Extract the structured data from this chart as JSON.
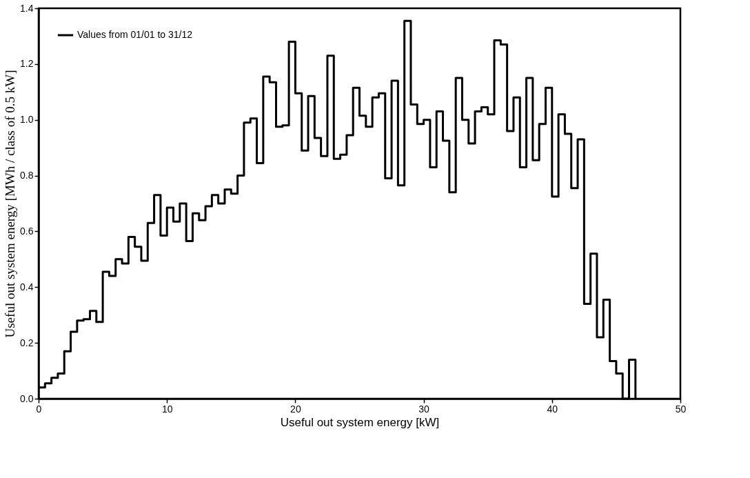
{
  "chart_data": {
    "type": "histogram",
    "xlabel": "Useful out system energy [kW]",
    "ylabel": "Useful out system energy [MWh / class of 0.5 kW]",
    "bins": [
      0,
      0.5,
      1,
      1.5,
      2,
      2.5,
      3,
      3.5,
      4,
      4.5,
      5,
      5.5,
      6,
      6.5,
      7,
      7.5,
      8,
      8.5,
      9,
      9.5,
      10,
      10.5,
      11,
      11.5,
      12,
      12.5,
      13,
      13.5,
      14,
      14.5,
      15,
      15.5,
      16,
      16.5,
      17,
      17.5,
      18,
      18.5,
      19,
      19.5,
      20,
      20.5,
      21,
      21.5,
      22,
      22.5,
      23,
      23.5,
      24,
      24.5,
      25,
      25.5,
      26,
      26.5,
      27,
      27.5,
      28,
      28.5,
      29,
      29.5,
      30,
      30.5,
      31,
      31.5,
      32,
      32.5,
      33,
      33.5,
      34,
      34.5,
      35,
      35.5,
      36,
      36.5,
      37,
      37.5,
      38,
      38.5,
      39,
      39.5,
      40,
      40.5,
      41,
      41.5,
      42,
      42.5,
      43,
      43.5,
      44,
      44.5,
      45,
      45.5,
      46,
      46.5
    ],
    "series": [
      {
        "name": "Values from 01/01 to 31/12",
        "color": "#000000",
        "values": [
          0.04,
          0.055,
          0.075,
          0.09,
          0.17,
          0.24,
          0.28,
          0.285,
          0.315,
          0.275,
          0.455,
          0.44,
          0.5,
          0.485,
          0.58,
          0.545,
          0.495,
          0.63,
          0.73,
          0.585,
          0.685,
          0.635,
          0.7,
          0.565,
          0.665,
          0.64,
          0.69,
          0.73,
          0.7,
          0.75,
          0.735,
          0.8,
          0.99,
          1.005,
          0.845,
          1.155,
          1.135,
          0.975,
          0.98,
          1.28,
          1.095,
          0.89,
          1.085,
          0.935,
          0.87,
          1.23,
          0.86,
          0.875,
          0.945,
          1.115,
          1.015,
          0.975,
          1.08,
          1.095,
          0.79,
          1.14,
          0.765,
          1.355,
          1.055,
          0.985,
          1.0,
          0.83,
          1.03,
          0.925,
          0.74,
          1.15,
          1.0,
          0.915,
          1.03,
          1.045,
          1.02,
          1.285,
          1.27,
          0.96,
          1.08,
          0.83,
          1.15,
          0.855,
          0.985,
          1.115,
          0.725,
          1.02,
          0.95,
          0.755,
          0.93,
          0.34,
          0.52,
          0.22,
          0.355,
          0.135,
          0.09,
          0,
          0.14
        ]
      }
    ],
    "xlim": [
      0,
      50
    ],
    "xticks": [
      0,
      10,
      20,
      30,
      40,
      50
    ],
    "ylim": [
      0,
      1.4
    ],
    "yticks": [
      {
        "value": 0,
        "label": "0.0"
      },
      0.2,
      0.4,
      0.6,
      0.8,
      {
        "value": 1,
        "label": "1.0"
      },
      1.2,
      1.4
    ],
    "grid": false,
    "legend": "top left"
  }
}
